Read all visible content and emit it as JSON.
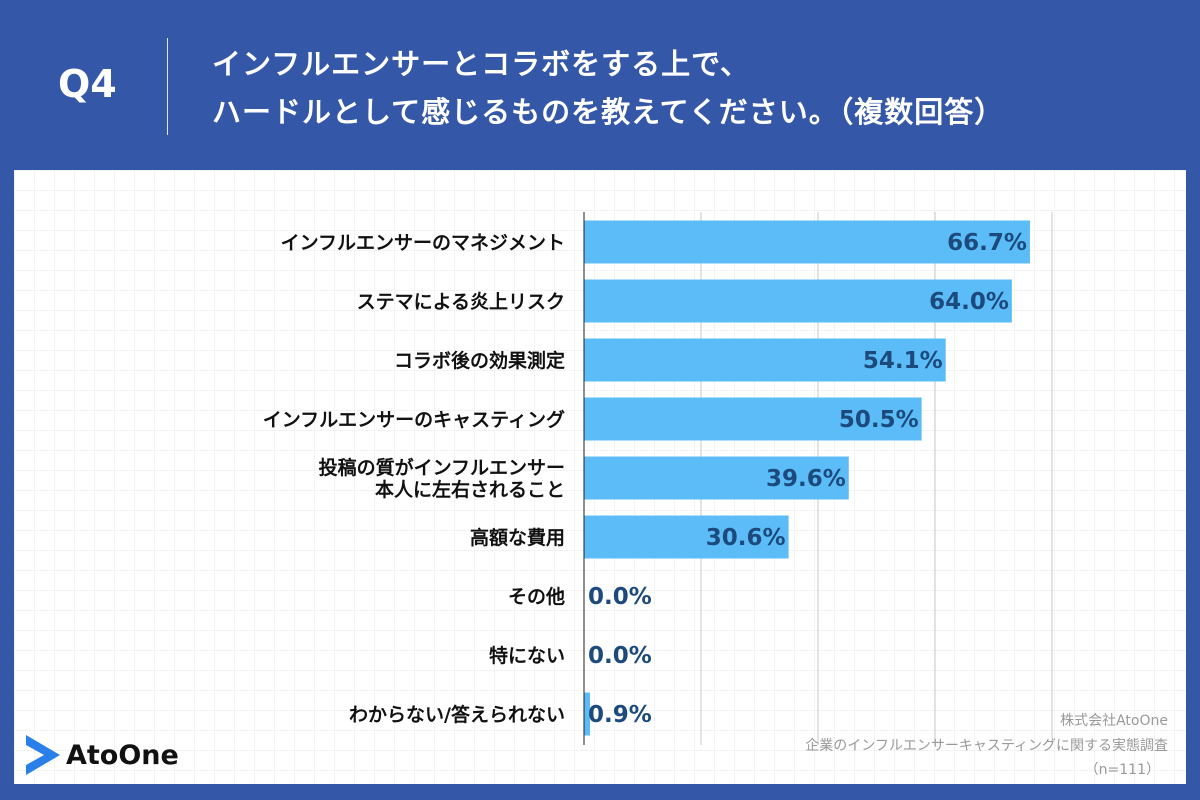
{
  "header": {
    "question": "Q4",
    "title_line1": "インフルエンサーとコラボをする上で、",
    "title_line2": "ハードルとして感じるものを教えてください。（複数回答）"
  },
  "chart_data": {
    "type": "bar",
    "orientation": "horizontal",
    "categories": [
      "インフルエンサーのマネジメント",
      "ステマによる炎上リスク",
      "コラボ後の効果測定",
      "インフルエンサーのキャスティング",
      "投稿の質がインフルエンサー\n本人に左右されること",
      "高額な費用",
      "その他",
      "特にない",
      "わからない/答えられない"
    ],
    "values": [
      66.7,
      64.0,
      54.1,
      50.5,
      39.6,
      30.6,
      0.0,
      0.0,
      0.9
    ],
    "labels": [
      "66.7%",
      "64.0%",
      "54.1%",
      "50.5%",
      "39.6%",
      "30.6%",
      "0.0%",
      "0.0%",
      "0.9%"
    ],
    "xlim": [
      0,
      70
    ],
    "grid_step": 17.5,
    "grid": true,
    "bar_color": "#5bbcf7",
    "label_color": "#1c4a7c"
  },
  "footer": {
    "company": "株式会社AtoOne",
    "survey": "企業のインフルエンサーキャスティングに関する実態調査",
    "sample": "（n=111）",
    "logo_text": "AtoOne"
  },
  "colors": {
    "background": "#3457a7",
    "logo_accent": "#2a7fe8"
  }
}
